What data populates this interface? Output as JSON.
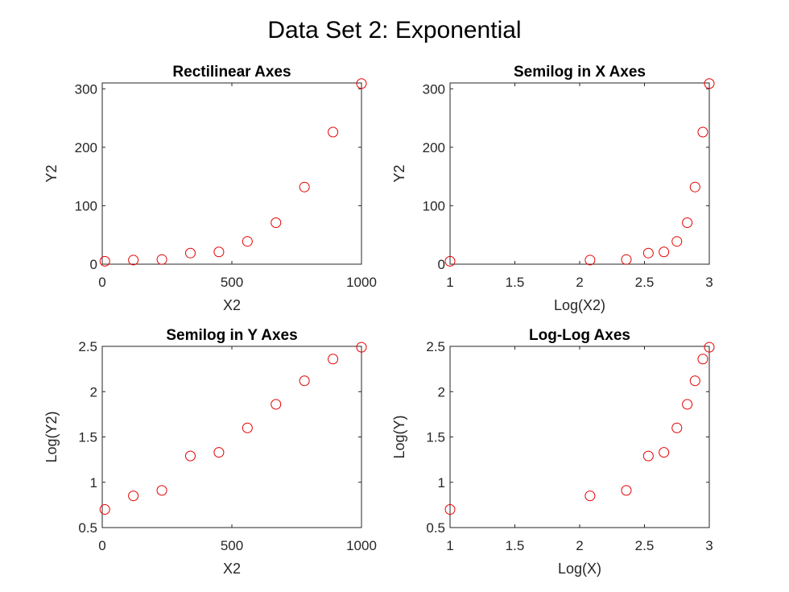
{
  "figure_title": "Data Set 2: Exponential",
  "marker_color": "#e60000",
  "axis_color": "#262626",
  "chart_data": [
    {
      "type": "scatter",
      "title": "Rectilinear Axes",
      "xlabel": "X2",
      "ylabel": "Y2",
      "xlim": [
        0,
        1000
      ],
      "ylim": [
        0,
        310
      ],
      "xticks": [
        0,
        500,
        1000
      ],
      "xtick_labels": [
        "0",
        "500",
        "1000"
      ],
      "yticks": [
        0,
        100,
        200,
        300
      ],
      "ytick_labels": [
        "0",
        "100",
        "200",
        "300"
      ],
      "grid": false,
      "x": [
        10,
        120,
        230,
        340,
        450,
        560,
        670,
        780,
        890,
        1000
      ],
      "y": [
        5,
        7,
        8,
        19,
        21,
        39,
        71,
        132,
        226,
        309
      ]
    },
    {
      "type": "scatter",
      "title": "Semilog in X Axes",
      "xlabel": "Log(X2)",
      "ylabel": "Y2",
      "xlim": [
        1,
        3
      ],
      "ylim": [
        0,
        310
      ],
      "xticks": [
        1,
        1.5,
        2,
        2.5,
        3
      ],
      "xtick_labels": [
        "1",
        "1.5",
        "2",
        "2.5",
        "3"
      ],
      "yticks": [
        0,
        100,
        200,
        300
      ],
      "ytick_labels": [
        "0",
        "100",
        "200",
        "300"
      ],
      "grid": false,
      "x": [
        1.0,
        2.08,
        2.36,
        2.53,
        2.65,
        2.75,
        2.83,
        2.89,
        2.95,
        3.0
      ],
      "y": [
        5,
        7,
        8,
        19,
        21,
        39,
        71,
        132,
        226,
        309
      ]
    },
    {
      "type": "scatter",
      "title": "Semilog in Y Axes",
      "xlabel": "X2",
      "ylabel": "Log(Y2)",
      "xlim": [
        0,
        1000
      ],
      "ylim": [
        0.5,
        2.5
      ],
      "xticks": [
        0,
        500,
        1000
      ],
      "xtick_labels": [
        "0",
        "500",
        "1000"
      ],
      "yticks": [
        0.5,
        1,
        1.5,
        2,
        2.5
      ],
      "ytick_labels": [
        "0.5",
        "1",
        "1.5",
        "2",
        "2.5"
      ],
      "grid": false,
      "x": [
        10,
        120,
        230,
        340,
        450,
        560,
        670,
        780,
        890,
        1000
      ],
      "y": [
        0.7,
        0.85,
        0.91,
        1.29,
        1.33,
        1.6,
        1.86,
        2.12,
        2.36,
        2.49
      ]
    },
    {
      "type": "scatter",
      "title": "Log-Log Axes",
      "xlabel": "Log(X)",
      "ylabel": "Log(Y)",
      "xlim": [
        1,
        3
      ],
      "ylim": [
        0.5,
        2.5
      ],
      "xticks": [
        1,
        1.5,
        2,
        2.5,
        3
      ],
      "xtick_labels": [
        "1",
        "1.5",
        "2",
        "2.5",
        "3"
      ],
      "yticks": [
        0.5,
        1,
        1.5,
        2,
        2.5
      ],
      "ytick_labels": [
        "0.5",
        "1",
        "1.5",
        "2",
        "2.5"
      ],
      "grid": false,
      "x": [
        1.0,
        2.08,
        2.36,
        2.53,
        2.65,
        2.75,
        2.83,
        2.89,
        2.95,
        3.0
      ],
      "y": [
        0.7,
        0.85,
        0.91,
        1.29,
        1.33,
        1.6,
        1.86,
        2.12,
        2.36,
        2.49
      ]
    }
  ]
}
